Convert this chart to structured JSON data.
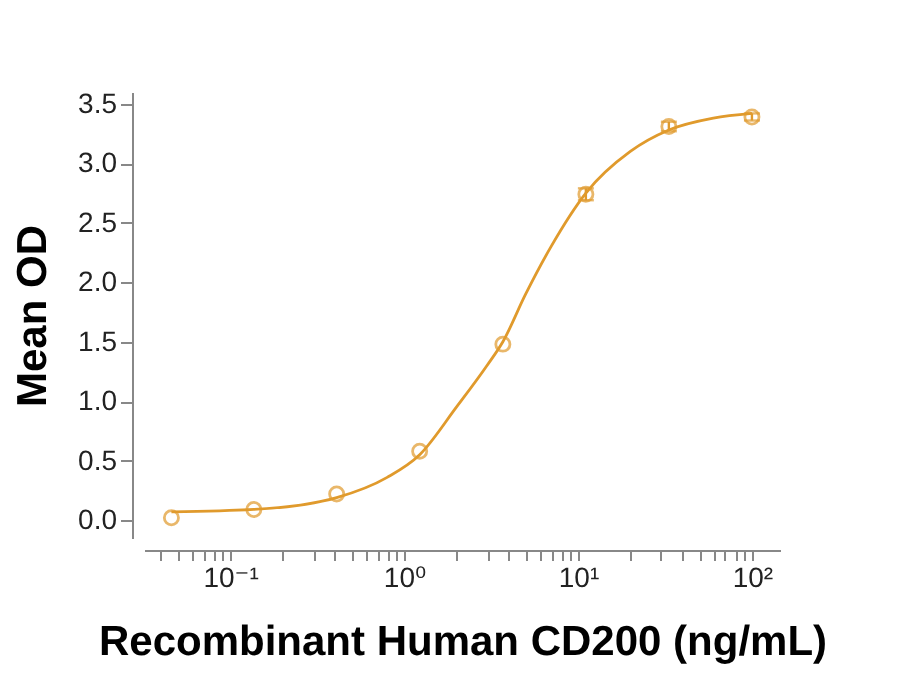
{
  "chart_data": {
    "type": "scatter",
    "xlabel": "Recombinant Human CD200 (ng/mL)",
    "ylabel": "Mean OD",
    "log": "x",
    "grid": false,
    "xlim": [
      0.032,
      145
    ],
    "xticks": [
      {
        "value": 0.04,
        "label": null
      },
      {
        "value": 0.05,
        "label": null
      },
      {
        "value": 0.06,
        "label": null
      },
      {
        "value": 0.07,
        "label": null
      },
      {
        "value": 0.08,
        "label": null
      },
      {
        "value": 0.09,
        "label": null
      },
      {
        "value": 0.1,
        "label": "10⁻¹"
      },
      {
        "value": 0.2,
        "label": null
      },
      {
        "value": 0.3,
        "label": null
      },
      {
        "value": 0.4,
        "label": null
      },
      {
        "value": 0.5,
        "label": null
      },
      {
        "value": 0.6,
        "label": null
      },
      {
        "value": 0.7,
        "label": null
      },
      {
        "value": 0.8,
        "label": null
      },
      {
        "value": 0.9,
        "label": null
      },
      {
        "value": 1,
        "label": "10⁰"
      },
      {
        "value": 2,
        "label": null
      },
      {
        "value": 3,
        "label": null
      },
      {
        "value": 4,
        "label": null
      },
      {
        "value": 5,
        "label": null
      },
      {
        "value": 6,
        "label": null
      },
      {
        "value": 7,
        "label": null
      },
      {
        "value": 8,
        "label": null
      },
      {
        "value": 9,
        "label": null
      },
      {
        "value": 10,
        "label": "10¹"
      },
      {
        "value": 20,
        "label": null
      },
      {
        "value": 30,
        "label": null
      },
      {
        "value": 40,
        "label": null
      },
      {
        "value": 50,
        "label": null
      },
      {
        "value": 60,
        "label": null
      },
      {
        "value": 70,
        "label": null
      },
      {
        "value": 80,
        "label": null
      },
      {
        "value": 90,
        "label": null
      },
      {
        "value": 100,
        "label": "10²"
      }
    ],
    "ylim": [
      -0.15,
      3.6
    ],
    "yticks": [
      {
        "value": 0,
        "label": "0.0"
      },
      {
        "value": 0.5,
        "label": "0.5"
      },
      {
        "value": 1,
        "label": "1.0"
      },
      {
        "value": 1.5,
        "label": "1.5"
      },
      {
        "value": 2,
        "label": "2.0"
      },
      {
        "value": 2.5,
        "label": "2.5"
      },
      {
        "value": 3,
        "label": "3.0"
      },
      {
        "value": 3.5,
        "label": "3.5"
      }
    ],
    "series": [
      {
        "color": "#e09a2c",
        "marker": "circle",
        "x": [
          0.046,
          0.137,
          0.41,
          1.23,
          3.7,
          11.1,
          33.3,
          100
        ],
        "values": [
          0.02,
          0.09,
          0.22,
          0.58,
          1.48,
          2.74,
          3.31,
          3.39
        ],
        "errors": [
          null,
          null,
          null,
          null,
          null,
          0.05,
          0.04,
          0.03
        ]
      },
      {
        "type": "line",
        "marker": "none",
        "color": "#e09a2c",
        "x": [
          0.046,
          0.137,
          0.41,
          0.8,
          1.23,
          2,
          3,
          3.7,
          5,
          7,
          11.1,
          20,
          33.3,
          60,
          100
        ],
        "values": [
          0.07,
          0.09,
          0.19,
          0.36,
          0.55,
          0.95,
          1.3,
          1.5,
          1.9,
          2.3,
          2.75,
          3.1,
          3.28,
          3.38,
          3.42
        ]
      }
    ]
  }
}
